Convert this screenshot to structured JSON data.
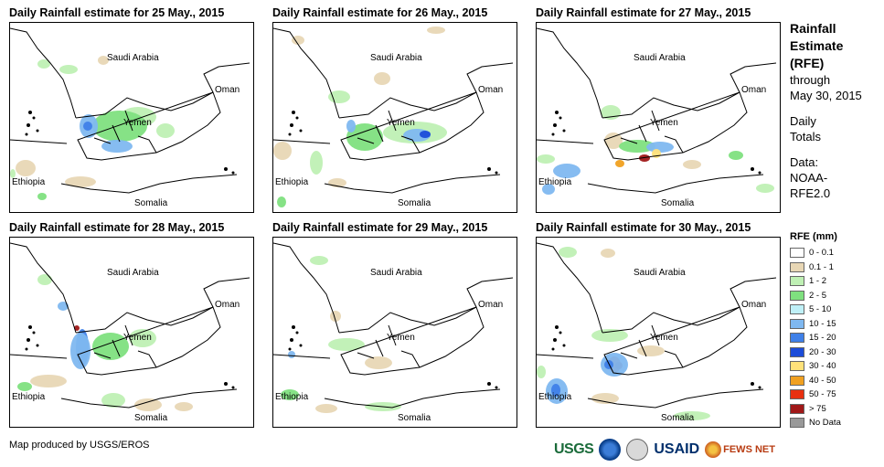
{
  "panels": [
    {
      "title": "Daily Rainfall estimate for 25 May., 2015",
      "rain": "p25"
    },
    {
      "title": "Daily Rainfall estimate for 26 May., 2015",
      "rain": "p26"
    },
    {
      "title": "Daily Rainfall estimate for 27 May., 2015",
      "rain": "p27"
    },
    {
      "title": "Daily Rainfall estimate for 28 May., 2015",
      "rain": "p28"
    },
    {
      "title": "Daily Rainfall estimate for 29 May., 2015",
      "rain": "p29"
    },
    {
      "title": "Daily Rainfall estimate for 30 May., 2015",
      "rain": "p30"
    }
  ],
  "map_labels": {
    "saudi": "Saudi Arabia",
    "oman": "Oman",
    "yemen": "Yemen",
    "ethiopia": "Ethiopia",
    "somalia": "Somalia"
  },
  "sidebar": {
    "title_line1": "Rainfall",
    "title_line2": "Estimate",
    "title_line3": "(RFE)",
    "through": "through",
    "date": "May 30, 2015",
    "daily": "Daily",
    "totals": "Totals",
    "data_label": "Data:",
    "data_source1": "NOAA-",
    "data_source2": "RFE2.0"
  },
  "legend": {
    "title": "RFE (mm)",
    "items": [
      {
        "label": "0 - 0.1",
        "color": "#ffffff"
      },
      {
        "label": "0.1 - 1",
        "color": "#e8d7b5"
      },
      {
        "label": "1 - 2",
        "color": "#bff0b4"
      },
      {
        "label": "2 - 5",
        "color": "#7fe07f"
      },
      {
        "label": "5 - 10",
        "color": "#bff0f7"
      },
      {
        "label": "10 - 15",
        "color": "#7fb8f0"
      },
      {
        "label": "15 - 20",
        "color": "#3f80e8"
      },
      {
        "label": "20 - 30",
        "color": "#1c4cd8"
      },
      {
        "label": "30 - 40",
        "color": "#ffe27a"
      },
      {
        "label": "40 - 50",
        "color": "#f0a020"
      },
      {
        "label": "50 - 75",
        "color": "#e83010"
      },
      {
        "label": "> 75",
        "color": "#a01818"
      },
      {
        "label": "No Data",
        "color": "#999999"
      }
    ]
  },
  "footer": {
    "credit": "Map produced by USGS/EROS",
    "logo_usgs": "USGS",
    "logo_usaid": "USAID",
    "logo_fews": "FEWS NET"
  }
}
